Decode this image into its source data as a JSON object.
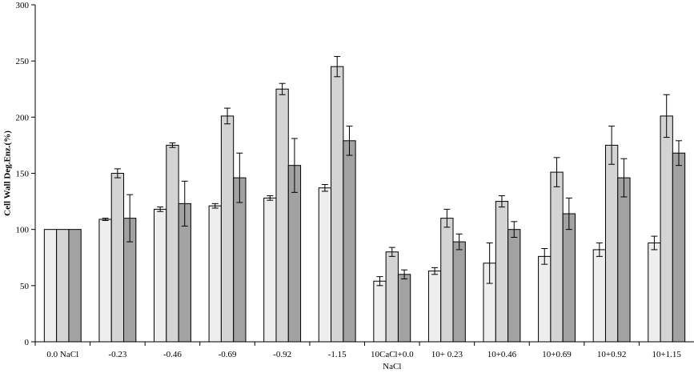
{
  "chart_data": {
    "type": "bar",
    "title": "",
    "xlabel": "",
    "ylabel": "Cell Wall Deg.Enz.(%)",
    "ylim": [
      0,
      300
    ],
    "yticks": [
      0,
      50,
      100,
      150,
      200,
      250,
      300
    ],
    "grid": false,
    "legend": "none",
    "categories": [
      {
        "line1": "0.0 NaCl",
        "line2": ""
      },
      {
        "line1": "-0.23",
        "line2": ""
      },
      {
        "line1": "-0.46",
        "line2": ""
      },
      {
        "line1": "-0.69",
        "line2": ""
      },
      {
        "line1": "-0.92",
        "line2": ""
      },
      {
        "line1": "-1.15",
        "line2": ""
      },
      {
        "line1": "10CaCl+0.0",
        "line2": "NaCl"
      },
      {
        "line1": "10+ 0.23",
        "line2": ""
      },
      {
        "line1": "10+0.46",
        "line2": ""
      },
      {
        "line1": "10+0.69",
        "line2": ""
      },
      {
        "line1": "10+0.92",
        "line2": ""
      },
      {
        "line1": "10+1.15",
        "line2": ""
      }
    ],
    "series": [
      {
        "color": "#eeeeee",
        "values": [
          100,
          109,
          118,
          121,
          128,
          137,
          54,
          63,
          70,
          76,
          82,
          88
        ],
        "errors": [
          0,
          1,
          2,
          2,
          2,
          3,
          4,
          3,
          18,
          7,
          6,
          6
        ]
      },
      {
        "color": "#d4d4d4",
        "values": [
          100,
          150,
          175,
          201,
          225,
          245,
          80,
          110,
          125,
          151,
          175,
          201
        ],
        "errors": [
          0,
          4,
          2,
          7,
          5,
          9,
          4,
          8,
          5,
          13,
          17,
          19
        ]
      },
      {
        "color": "#a2a2a2",
        "values": [
          100,
          110,
          123,
          146,
          157,
          179,
          60,
          89,
          100,
          114,
          146,
          168
        ],
        "errors": [
          0,
          21,
          20,
          22,
          24,
          13,
          4,
          7,
          7,
          14,
          17,
          11
        ]
      }
    ]
  }
}
